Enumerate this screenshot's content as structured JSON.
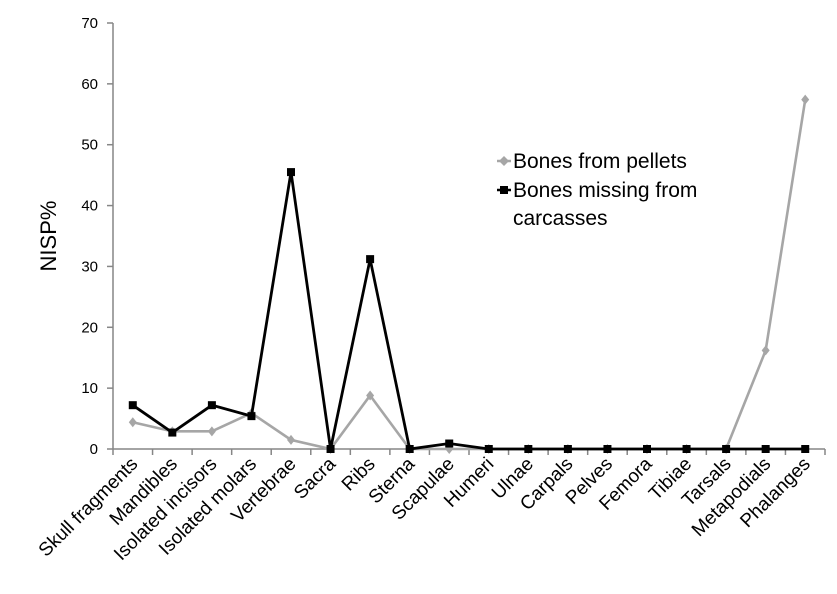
{
  "chart_data": {
    "type": "line",
    "title": "",
    "xlabel": "",
    "ylabel": "NISP%",
    "ylim": [
      0,
      70
    ],
    "yticks": [
      "0",
      "10",
      "20",
      "30",
      "40",
      "50",
      "60",
      "70"
    ],
    "grid": false,
    "legend_position": "center-right",
    "categories": [
      "Skull fragments",
      "Mandibles",
      "Isolated incisors",
      "Isolated molars",
      "Vertebrae",
      "Sacra",
      "Ribs",
      "Sterna",
      "Scapulae",
      "Humeri",
      "Ulnae",
      "Carpals",
      "Pelves",
      "Femora",
      "Tibiae",
      "Tarsals",
      "Metapodials",
      "Phalanges"
    ],
    "series": [
      {
        "name": "Bones from pellets",
        "color": "#a6a6a6",
        "marker": "diamond",
        "values": [
          4.4,
          2.9,
          2.9,
          5.9,
          1.5,
          0,
          8.8,
          0,
          0,
          0,
          0,
          0,
          0,
          0,
          0,
          0,
          16.2,
          57.4
        ]
      },
      {
        "name": "Bones missing from carcasses",
        "color": "#000000",
        "marker": "square",
        "values": [
          7.2,
          2.7,
          7.2,
          5.4,
          45.5,
          0,
          31.2,
          0,
          0.9,
          0,
          0,
          0,
          0,
          0,
          0,
          0,
          0,
          0
        ]
      }
    ],
    "legend": {
      "line1": "Bones from pellets",
      "line2a": "Bones missing from",
      "line2b": "carcasses"
    }
  }
}
